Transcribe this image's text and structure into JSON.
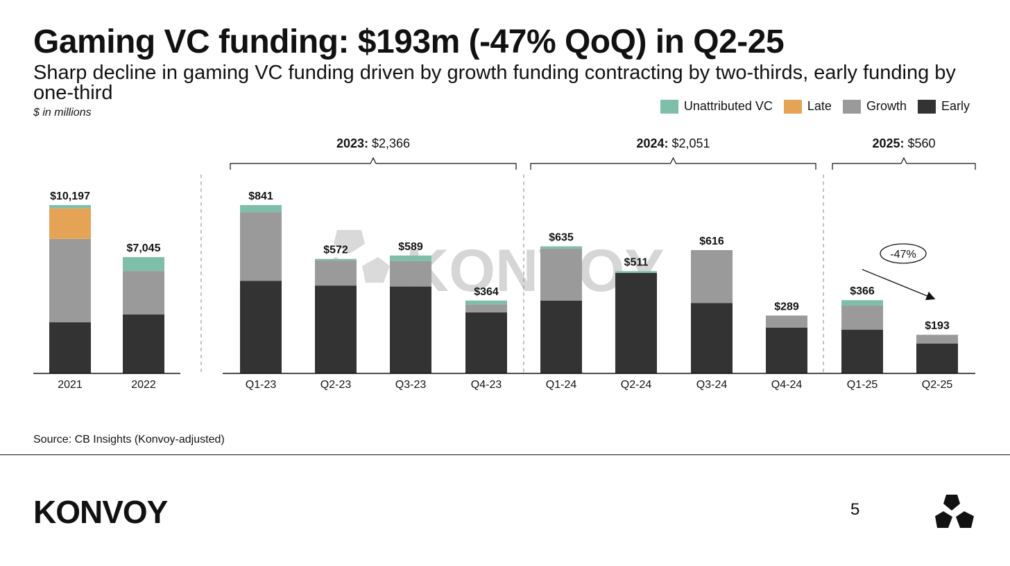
{
  "header": {
    "title": "Gaming VC funding: $193m (-47% QoQ) in Q2-25",
    "subtitle": "Sharp decline in gaming VC funding driven by growth funding contracting by two-thirds, early funding by one-third",
    "units": "$ in millions"
  },
  "legend": [
    {
      "label": "Unattributed VC",
      "color": "#7fbfa9"
    },
    {
      "label": "Late",
      "color": "#e5a455"
    },
    {
      "label": "Growth",
      "color": "#9a9a9a"
    },
    {
      "label": "Early",
      "color": "#333333"
    }
  ],
  "watermark": "KONVOY",
  "chart_data": {
    "type": "bar",
    "stacked": true,
    "series_order": [
      "Early",
      "Growth",
      "Late",
      "Unattributed VC"
    ],
    "colors": {
      "Early": "#333333",
      "Growth": "#9a9a9a",
      "Late": "#e5a455",
      "Unattributed VC": "#7fbfa9"
    },
    "annual": {
      "categories": [
        "2021",
        "2022"
      ],
      "totals": [
        10197,
        7045
      ],
      "total_labels": [
        "$10,197",
        "$7,045"
      ],
      "series": [
        {
          "name": "Early",
          "values": [
            3100,
            3575
          ]
        },
        {
          "name": "Growth",
          "values": [
            5050,
            2630
          ]
        },
        {
          "name": "Late",
          "values": [
            1850,
            0
          ]
        },
        {
          "name": "Unattributed VC",
          "values": [
            197,
            840
          ]
        }
      ]
    },
    "quarterly": {
      "categories": [
        "Q1-23",
        "Q2-23",
        "Q3-23",
        "Q4-23",
        "Q1-24",
        "Q2-24",
        "Q3-24",
        "Q4-24",
        "Q1-25",
        "Q2-25"
      ],
      "totals": [
        841,
        572,
        589,
        364,
        635,
        511,
        616,
        289,
        366,
        193
      ],
      "total_labels": [
        "$841",
        "$572",
        "$589",
        "$364",
        "$635",
        "$511",
        "$616",
        "$289",
        "$366",
        "$193"
      ],
      "series": [
        {
          "name": "Early",
          "values": [
            462,
            439,
            434,
            305,
            364,
            502,
            352,
            229,
            218,
            149
          ]
        },
        {
          "name": "Growth",
          "values": [
            344,
            125,
            127,
            40,
            260,
            0,
            264,
            60,
            121,
            44
          ]
        },
        {
          "name": "Late",
          "values": [
            0,
            0,
            0,
            0,
            0,
            0,
            0,
            0,
            0,
            0
          ]
        },
        {
          "name": "Unattributed VC",
          "values": [
            35,
            8,
            28,
            19,
            11,
            9,
            0,
            0,
            27,
            0
          ]
        }
      ]
    },
    "year_groups": [
      {
        "year": "2023:",
        "total": "$2,366"
      },
      {
        "year": "2024:",
        "total": "$2,051"
      },
      {
        "year": "2025:",
        "total": "$560"
      }
    ],
    "annotation": {
      "label": "-47%",
      "from": "Q1-25",
      "to": "Q2-25"
    }
  },
  "footer": {
    "source": "Source: CB Insights (Konvoy-adjusted)",
    "logo": "KONVOY",
    "page_number": "5"
  }
}
